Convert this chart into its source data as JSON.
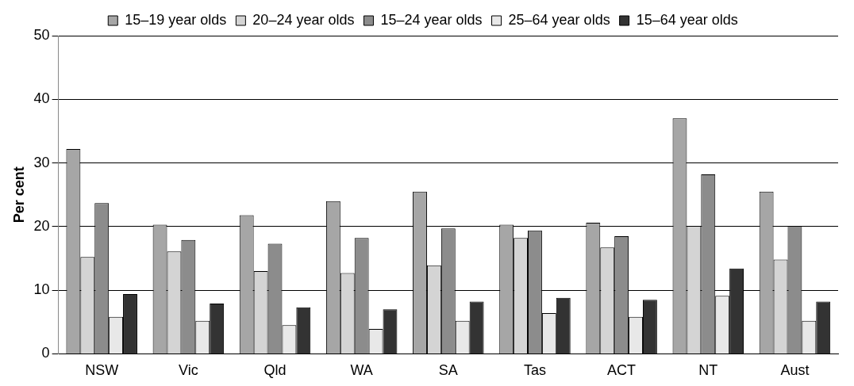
{
  "chart_data": {
    "type": "bar",
    "ylabel": "Per cent",
    "categories": [
      "NSW",
      "Vic",
      "Qld",
      "WA",
      "SA",
      "Tas",
      "ACT",
      "NT",
      "Aust"
    ],
    "series": [
      {
        "name": "15–19 year olds",
        "color": "#a6a6a6",
        "values": [
          32.2,
          20.3,
          21.8,
          24.0,
          25.5,
          20.3,
          20.6,
          37.0,
          25.5
        ]
      },
      {
        "name": "20–24 year olds",
        "color": "#d4d4d4",
        "values": [
          15.2,
          16.1,
          13.0,
          12.7,
          13.9,
          18.2,
          16.7,
          20.1,
          14.8
        ]
      },
      {
        "name": "15–24 year olds",
        "color": "#8c8c8c",
        "values": [
          23.7,
          17.9,
          17.3,
          18.2,
          19.7,
          19.4,
          18.5,
          28.2,
          20.1
        ]
      },
      {
        "name": "25–64 year olds",
        "color": "#e8e8e8",
        "values": [
          5.8,
          5.2,
          4.5,
          3.9,
          5.2,
          6.4,
          5.8,
          9.1,
          5.2
        ]
      },
      {
        "name": "15–64 year olds",
        "color": "#333333",
        "values": [
          9.4,
          7.9,
          7.3,
          7.0,
          8.2,
          8.8,
          8.5,
          13.4,
          8.2
        ]
      }
    ],
    "ylim": [
      0,
      50
    ],
    "yticks": [
      0,
      10,
      20,
      30,
      40,
      50
    ],
    "grid": "y",
    "legend": "top"
  }
}
